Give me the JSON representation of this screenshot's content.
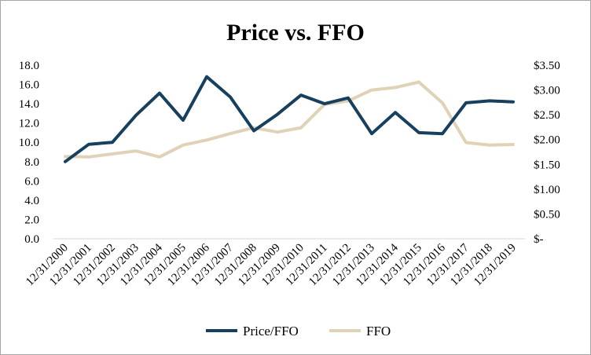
{
  "chart_data": {
    "type": "line",
    "title": "Price vs. FFO",
    "categories": [
      "12/31/2000",
      "12/31/2001",
      "12/31/2002",
      "12/31/2003",
      "12/31/2004",
      "12/31/2005",
      "12/31/2006",
      "12/31/2007",
      "12/31/2008",
      "12/31/2009",
      "12/31/2010",
      "12/31/2011",
      "12/31/2012",
      "12/31/2013",
      "12/31/2014",
      "12/31/2015",
      "12/31/2016",
      "12/31/2017",
      "12/31/2018",
      "12/31/2019"
    ],
    "left_axis": {
      "ylim": [
        0,
        18
      ],
      "ticks": [
        "0.0",
        "2.0",
        "4.0",
        "6.0",
        "8.0",
        "10.0",
        "12.0",
        "14.0",
        "16.0",
        "18.0"
      ]
    },
    "right_axis": {
      "ylim": [
        0,
        3.5
      ],
      "ticks": [
        "$-",
        "$0.50",
        "$1.00",
        "$1.50",
        "$2.00",
        "$2.50",
        "$3.00",
        "$3.50"
      ]
    },
    "series": [
      {
        "name": "Price/FFO",
        "axis": "left",
        "color": "#17405e",
        "values": [
          8.0,
          9.8,
          10.0,
          12.8,
          15.1,
          12.3,
          16.8,
          14.7,
          11.2,
          12.9,
          14.9,
          14.0,
          14.6,
          10.9,
          13.1,
          11.0,
          10.9,
          14.1,
          14.3,
          14.2
        ]
      },
      {
        "name": "FFO",
        "axis": "right",
        "color": "#e0d2b6",
        "values": [
          1.66,
          1.65,
          1.71,
          1.77,
          1.65,
          1.89,
          1.99,
          2.12,
          2.24,
          2.15,
          2.24,
          2.71,
          2.78,
          3.0,
          3.05,
          3.16,
          2.74,
          1.94,
          1.89,
          1.9
        ]
      }
    ],
    "legend_position": "bottom",
    "grid": false
  }
}
